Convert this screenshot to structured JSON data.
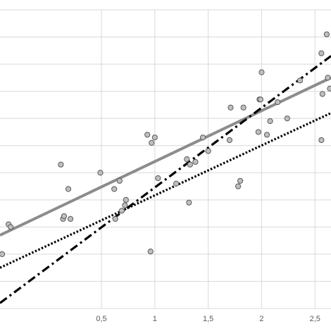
{
  "chart_data": {
    "type": "scatter",
    "title": "",
    "xlabel": "",
    "ylabel": "",
    "grid": true,
    "legend": "none",
    "xlim": [
      -0.45,
      2.65
    ],
    "ylim": [
      0,
      1.1
    ],
    "x_ticks": [
      0.5,
      1,
      1.5,
      2,
      2.5
    ],
    "x_tick_labels": [
      "0,5",
      "1",
      "1,5",
      "2",
      "2,5"
    ],
    "y_gridlines": [
      0,
      0.1,
      0.2,
      0.3,
      0.4,
      0.5,
      0.6,
      0.7,
      0.8,
      0.9,
      1.0,
      1.1
    ],
    "colors": {
      "points_fill": "#bfbfbf",
      "points_stroke": "#595959",
      "trend_solid": "#8c8c8c",
      "trend_dotted": "#000000",
      "trend_dashdot": "#000000",
      "grid": "#d9d9d9"
    },
    "points": [
      {
        "x": -0.43,
        "y": 0.2
      },
      {
        "x": -0.37,
        "y": 0.31
      },
      {
        "x": -0.35,
        "y": 0.3
      },
      {
        "x": 0.12,
        "y": 0.53
      },
      {
        "x": 0.14,
        "y": 0.33
      },
      {
        "x": 0.15,
        "y": 0.34
      },
      {
        "x": 0.19,
        "y": 0.44
      },
      {
        "x": 0.21,
        "y": 0.33
      },
      {
        "x": 0.49,
        "y": 0.5
      },
      {
        "x": 0.62,
        "y": 0.44
      },
      {
        "x": 0.63,
        "y": 0.33
      },
      {
        "x": 0.67,
        "y": 0.47
      },
      {
        "x": 0.69,
        "y": 0.36
      },
      {
        "x": 0.72,
        "y": 0.38
      },
      {
        "x": 0.73,
        "y": 0.4
      },
      {
        "x": 0.93,
        "y": 0.64
      },
      {
        "x": 0.96,
        "y": 0.21
      },
      {
        "x": 0.97,
        "y": 0.61
      },
      {
        "x": 1.0,
        "y": 0.63
      },
      {
        "x": 1.03,
        "y": 0.48
      },
      {
        "x": 1.2,
        "y": 0.46
      },
      {
        "x": 1.3,
        "y": 0.55
      },
      {
        "x": 1.32,
        "y": 0.39
      },
      {
        "x": 1.33,
        "y": 0.53
      },
      {
        "x": 1.38,
        "y": 0.54
      },
      {
        "x": 1.45,
        "y": 0.63
      },
      {
        "x": 1.5,
        "y": 0.58
      },
      {
        "x": 1.7,
        "y": 0.62
      },
      {
        "x": 1.71,
        "y": 0.74
      },
      {
        "x": 1.78,
        "y": 0.45
      },
      {
        "x": 1.8,
        "y": 0.47
      },
      {
        "x": 1.83,
        "y": 0.74
      },
      {
        "x": 1.97,
        "y": 0.65
      },
      {
        "x": 1.98,
        "y": 0.77
      },
      {
        "x": 1.99,
        "y": 0.77
      },
      {
        "x": 2.0,
        "y": 0.87
      },
      {
        "x": 2.05,
        "y": 0.64
      },
      {
        "x": 2.08,
        "y": 0.69
      },
      {
        "x": 2.15,
        "y": 0.76
      },
      {
        "x": 2.24,
        "y": 0.7
      },
      {
        "x": 2.36,
        "y": 0.84
      },
      {
        "x": 2.56,
        "y": 0.62
      },
      {
        "x": 2.56,
        "y": 0.94
      },
      {
        "x": 2.57,
        "y": 0.79
      },
      {
        "x": 2.61,
        "y": 1.01
      },
      {
        "x": 2.62,
        "y": 0.85
      },
      {
        "x": 2.64,
        "y": 0.81
      }
    ],
    "series": [
      {
        "style": "solid",
        "x": [
          -0.45,
          2.65
        ],
        "y": [
          0.27,
          0.85
        ]
      },
      {
        "style": "dotted",
        "x": [
          -0.45,
          2.65
        ],
        "y": [
          0.15,
          0.72
        ]
      },
      {
        "style": "dashdot",
        "x": [
          -0.45,
          2.65
        ],
        "y": [
          0.02,
          0.93
        ]
      }
    ]
  }
}
